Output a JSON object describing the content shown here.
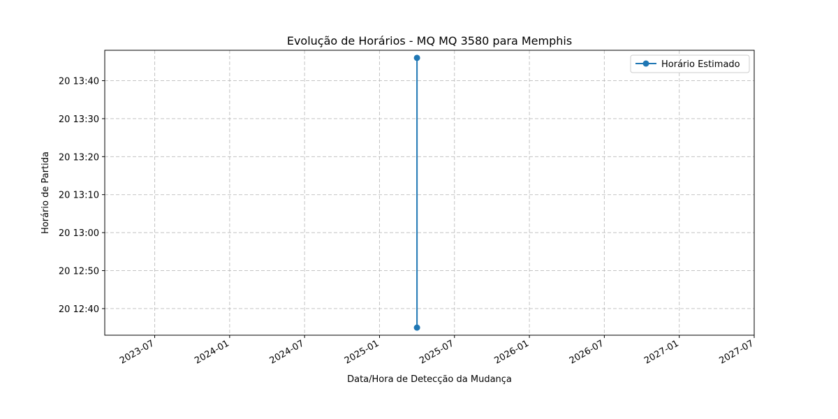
{
  "chart_data": {
    "type": "line",
    "title": "Evolução de Horários - MQ MQ 3580 para Memphis",
    "xlabel": "Data/Hora de Detecção da Mudança",
    "ylabel": "Horário de Partida",
    "x_ticks": [
      "2023-07",
      "2024-01",
      "2024-07",
      "2025-01",
      "2025-07",
      "2026-01",
      "2026-07",
      "2027-01",
      "2027-07"
    ],
    "y_ticks": [
      "20 12:40",
      "20 12:50",
      "20 13:00",
      "20 13:10",
      "20 13:20",
      "20 13:30",
      "20 13:40"
    ],
    "xlim": [
      "2023-03",
      "2027-07"
    ],
    "ylim": [
      "20 12:33",
      "20 13:48"
    ],
    "grid": true,
    "legend_position": "top-right",
    "series": [
      {
        "name": "Horário Estimado",
        "color": "#1f77b4",
        "marker": "circle",
        "points": [
          {
            "x": "2025-04",
            "y": "20 12:35"
          },
          {
            "x": "2025-04",
            "y": "20 13:46"
          }
        ]
      }
    ]
  }
}
